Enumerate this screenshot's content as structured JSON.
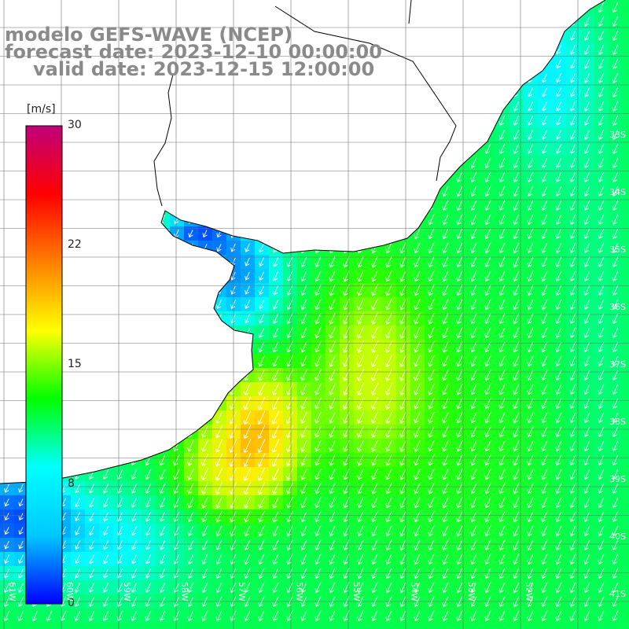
{
  "title": {
    "model": "modelo GEFS-WAVE (NCEP)",
    "forecast": "forecast date: 2023-12-10 00:00:00",
    "valid": "valid date: 2023-12-15 12:00:00"
  },
  "colorbar": {
    "unit": "[m/s]",
    "ticks": [
      "30",
      "22",
      "15",
      "8",
      "0"
    ],
    "stops": [
      "#0000ff",
      "#00c8ff",
      "#00ffff",
      "#00ff00",
      "#ffff00",
      "#ff8000",
      "#ff0000",
      "#c0007a"
    ]
  },
  "lat_labels": [
    "33S",
    "34S",
    "35S",
    "36S",
    "37S",
    "38S",
    "39S",
    "40S",
    "41S"
  ],
  "lon_labels": [
    "61W",
    "60W",
    "59W",
    "58W",
    "57W",
    "56W",
    "55W",
    "54W",
    "53W",
    "52W"
  ],
  "colors": {
    "land": "#ffffff",
    "coast": "#000000",
    "grid": "#6e6e6e",
    "arrow": "#ffffff"
  }
}
